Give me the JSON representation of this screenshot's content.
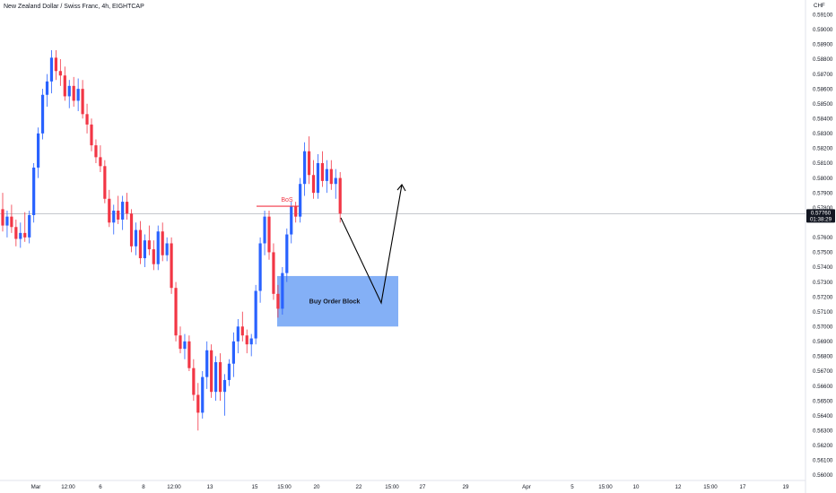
{
  "chart_data": {
    "type": "candlestick",
    "title": "New Zealand Dollar / Swiss Franc, 4h, EIGHTCAP",
    "currency": "CHF",
    "ylim": [
      0.56,
      0.5915
    ],
    "yticks": [
      "0.59100",
      "0.59000",
      "0.58900",
      "0.58800",
      "0.58700",
      "0.58600",
      "0.58500",
      "0.58400",
      "0.58300",
      "0.58200",
      "0.58100",
      "0.58000",
      "0.57900",
      "0.57800",
      "0.57600",
      "0.57500",
      "0.57400",
      "0.57300",
      "0.57200",
      "0.57100",
      "0.57000",
      "0.56900",
      "0.56800",
      "0.56700",
      "0.56600",
      "0.56500",
      "0.56400",
      "0.56300",
      "0.56200",
      "0.56100",
      "0.56000"
    ],
    "xticks": [
      "Mar",
      "12:00",
      "6",
      "8",
      "12:00",
      "13",
      "15",
      "15:00",
      "20",
      "22",
      "15:00",
      "27",
      "29",
      "Apr",
      "5",
      "15:00",
      "10",
      "12",
      "15:00",
      "17",
      "19"
    ],
    "current_price": {
      "price": "0.57760",
      "countdown": "01:38:29",
      "value": 0.5776
    },
    "colors": {
      "bull": "#2962ff",
      "bear": "#f23645",
      "zone": "#6fa2f5",
      "arrow": "#000000"
    },
    "annotations": {
      "bos_label": "BoS",
      "bos_level": 0.5781,
      "zone_label": "Buy Order Block",
      "zone_top": 0.5734,
      "zone_bottom": 0.57
    },
    "candles": [
      [
        0.5779,
        0.579,
        0.5764,
        0.5768
      ],
      [
        0.5768,
        0.5778,
        0.576,
        0.5774
      ],
      [
        0.5774,
        0.5782,
        0.5763,
        0.5767
      ],
      [
        0.5767,
        0.5772,
        0.5754,
        0.5759
      ],
      [
        0.5759,
        0.577,
        0.5753,
        0.5763
      ],
      [
        0.5763,
        0.5777,
        0.5757,
        0.576
      ],
      [
        0.576,
        0.5778,
        0.5756,
        0.5775
      ],
      [
        0.5775,
        0.581,
        0.577,
        0.5807
      ],
      [
        0.5807,
        0.5834,
        0.58,
        0.583
      ],
      [
        0.583,
        0.586,
        0.5826,
        0.5856
      ],
      [
        0.5856,
        0.587,
        0.5848,
        0.5865
      ],
      [
        0.5865,
        0.5886,
        0.5857,
        0.5881
      ],
      [
        0.5881,
        0.5886,
        0.5866,
        0.5872
      ],
      [
        0.5872,
        0.588,
        0.5862,
        0.5869
      ],
      [
        0.5869,
        0.5875,
        0.5852,
        0.5855
      ],
      [
        0.5855,
        0.5866,
        0.5847,
        0.5862
      ],
      [
        0.5862,
        0.5868,
        0.5848,
        0.5852
      ],
      [
        0.5852,
        0.5867,
        0.5845,
        0.586
      ],
      [
        0.586,
        0.5866,
        0.584,
        0.5843
      ],
      [
        0.5843,
        0.585,
        0.583,
        0.5836
      ],
      [
        0.5836,
        0.584,
        0.5818,
        0.5822
      ],
      [
        0.5822,
        0.5826,
        0.581,
        0.5814
      ],
      [
        0.5814,
        0.5822,
        0.5804,
        0.5808
      ],
      [
        0.5808,
        0.5812,
        0.5783,
        0.5786
      ],
      [
        0.5786,
        0.5792,
        0.5767,
        0.577
      ],
      [
        0.577,
        0.5782,
        0.5762,
        0.5778
      ],
      [
        0.5778,
        0.5788,
        0.5769,
        0.5772
      ],
      [
        0.5772,
        0.5788,
        0.5765,
        0.5784
      ],
      [
        0.5784,
        0.579,
        0.5772,
        0.5776
      ],
      [
        0.5776,
        0.5779,
        0.575,
        0.5754
      ],
      [
        0.5754,
        0.577,
        0.5748,
        0.5765
      ],
      [
        0.5765,
        0.5771,
        0.5742,
        0.5746
      ],
      [
        0.5746,
        0.5762,
        0.574,
        0.5758
      ],
      [
        0.5758,
        0.5768,
        0.5748,
        0.5752
      ],
      [
        0.5752,
        0.5758,
        0.5738,
        0.5742
      ],
      [
        0.5742,
        0.5768,
        0.5738,
        0.5764
      ],
      [
        0.5764,
        0.577,
        0.5744,
        0.5748
      ],
      [
        0.5748,
        0.576,
        0.5744,
        0.5756
      ],
      [
        0.5756,
        0.576,
        0.5722,
        0.5726
      ],
      [
        0.5726,
        0.573,
        0.569,
        0.5694
      ],
      [
        0.5694,
        0.57,
        0.5682,
        0.5685
      ],
      [
        0.5685,
        0.5695,
        0.5678,
        0.569
      ],
      [
        0.569,
        0.5694,
        0.567,
        0.5672
      ],
      [
        0.5672,
        0.5678,
        0.565,
        0.5654
      ],
      [
        0.5654,
        0.5662,
        0.563,
        0.5642
      ],
      [
        0.5642,
        0.567,
        0.5638,
        0.5666
      ],
      [
        0.5666,
        0.569,
        0.5658,
        0.5684
      ],
      [
        0.5684,
        0.5688,
        0.5652,
        0.5656
      ],
      [
        0.5656,
        0.568,
        0.565,
        0.5676
      ],
      [
        0.5676,
        0.5682,
        0.565,
        0.5656
      ],
      [
        0.5656,
        0.5668,
        0.564,
        0.5664
      ],
      [
        0.5664,
        0.5678,
        0.566,
        0.5675
      ],
      [
        0.5675,
        0.5696,
        0.5666,
        0.569
      ],
      [
        0.569,
        0.5705,
        0.5682,
        0.57
      ],
      [
        0.57,
        0.571,
        0.569,
        0.5694
      ],
      [
        0.5694,
        0.5698,
        0.5682,
        0.5688
      ],
      [
        0.5688,
        0.5695,
        0.568,
        0.5692
      ],
      [
        0.5692,
        0.5728,
        0.5688,
        0.5724
      ],
      [
        0.5724,
        0.576,
        0.5716,
        0.5756
      ],
      [
        0.5756,
        0.5778,
        0.5748,
        0.5774
      ],
      [
        0.5774,
        0.5778,
        0.5745,
        0.575
      ],
      [
        0.575,
        0.5756,
        0.5718,
        0.5722
      ],
      [
        0.5722,
        0.5728,
        0.5706,
        0.5712
      ],
      [
        0.5712,
        0.574,
        0.5708,
        0.5736
      ],
      [
        0.5736,
        0.5766,
        0.573,
        0.5762
      ],
      [
        0.5762,
        0.5784,
        0.5756,
        0.5781
      ],
      [
        0.5781,
        0.5784,
        0.577,
        0.5774
      ],
      [
        0.5774,
        0.58,
        0.577,
        0.5796
      ],
      [
        0.5796,
        0.5824,
        0.5788,
        0.5818
      ],
      [
        0.5818,
        0.5828,
        0.5796,
        0.5802
      ],
      [
        0.5802,
        0.5812,
        0.5786,
        0.579
      ],
      [
        0.579,
        0.5816,
        0.5786,
        0.581
      ],
      [
        0.581,
        0.5818,
        0.5794,
        0.5798
      ],
      [
        0.5798,
        0.5812,
        0.579,
        0.5806
      ],
      [
        0.5806,
        0.5812,
        0.5792,
        0.5796
      ],
      [
        0.5796,
        0.5806,
        0.5786,
        0.58
      ],
      [
        0.58,
        0.5804,
        0.577,
        0.5776
      ]
    ]
  }
}
